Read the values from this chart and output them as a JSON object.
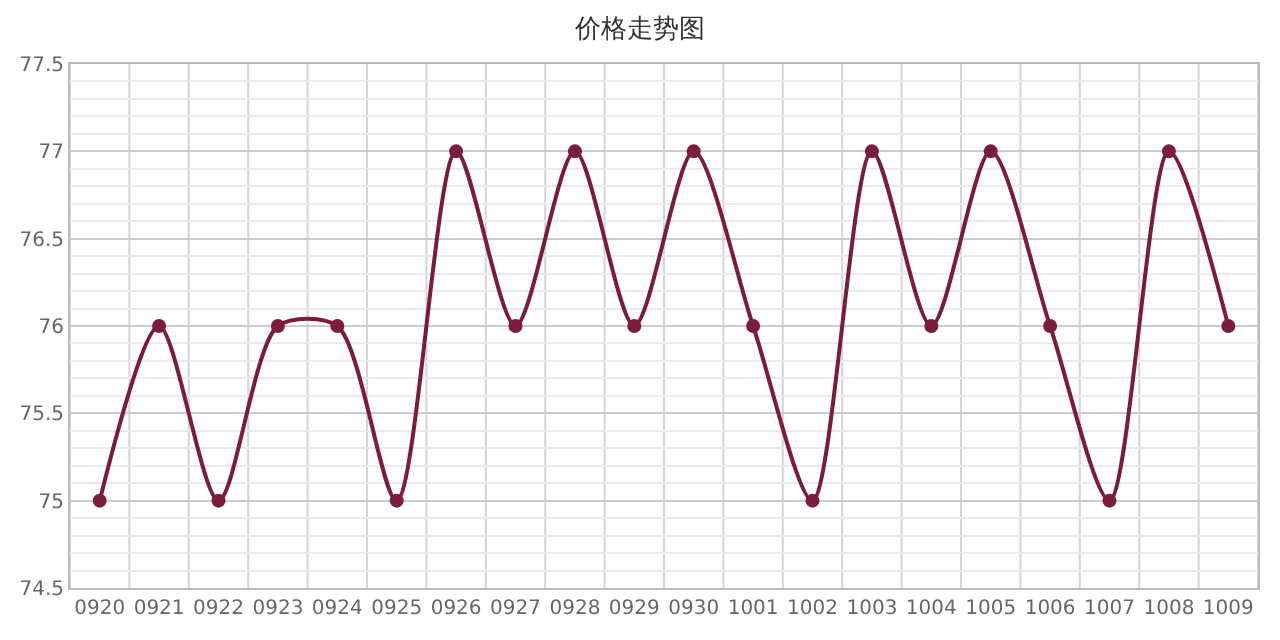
{
  "chart_data": {
    "type": "line",
    "title": "价格走势图",
    "categories": [
      "0920",
      "0921",
      "0922",
      "0923",
      "0924",
      "0925",
      "0926",
      "0927",
      "0928",
      "0929",
      "0930",
      "1001",
      "1002",
      "1003",
      "1004",
      "1005",
      "1006",
      "1007",
      "1008",
      "1009"
    ],
    "series": [
      {
        "color": "#7a1c3c",
        "values": [
          75,
          76,
          75,
          76,
          76,
          75,
          77,
          76,
          77,
          76,
          77,
          76,
          75,
          77,
          76,
          77,
          76,
          75,
          77,
          76
        ]
      }
    ],
    "ylim": [
      74.5,
      77.5
    ],
    "yticks": [
      74.5,
      75,
      75.5,
      76,
      76.5,
      77,
      77.5
    ],
    "grid": true,
    "marker": "circle",
    "line_style": "solid",
    "legend": false
  }
}
